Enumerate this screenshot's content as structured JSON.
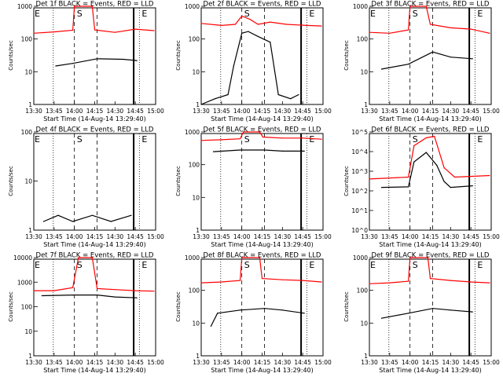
{
  "figure": {
    "xlabel": "Start Time (14-Aug-14 13:29:40)",
    "ylabel": "Counts/sec",
    "title_suffix": "BLACK = Events, RED = LLD",
    "series_names": [
      "Events",
      "LLD"
    ],
    "colors": {
      "events": "#000000",
      "lld": "#ff0000",
      "axes": "#000000",
      "background": "#ffffff"
    }
  },
  "chart_data": [
    {
      "type": "line",
      "title": "Det 1f BLACK = Events, RED = LLD",
      "xlabel": "Start Time (14-Aug-14 13:29:40)",
      "ylabel": "Counts/sec",
      "x_ticks": [
        "13:30",
        "13:45",
        "14:00",
        "14:15",
        "14:30",
        "14:45",
        "15:00"
      ],
      "y_scale": "log",
      "ylim": [
        1,
        1000
      ],
      "y_ticks": [
        "1",
        "10",
        "100",
        "1000"
      ],
      "markers": [
        "E",
        "S",
        "E"
      ],
      "series": [
        {
          "name": "Events",
          "points": [
            [
              13.77,
              15
            ],
            [
              13.98,
              18
            ],
            [
              14.28,
              25
            ],
            [
              14.6,
              24
            ],
            [
              14.77,
              22
            ]
          ]
        },
        {
          "name": "LLD",
          "points": [
            [
              13.5,
              150
            ],
            [
              13.75,
              165
            ],
            [
              13.98,
              185
            ],
            [
              14.0,
              1000
            ],
            [
              14.22,
              1000
            ],
            [
              14.25,
              190
            ],
            [
              14.5,
              160
            ],
            [
              14.75,
              200
            ],
            [
              14.98,
              180
            ]
          ]
        }
      ]
    },
    {
      "type": "line",
      "title": "Det 2f BLACK = Events, RED = LLD",
      "xlabel": "Start Time (14-Aug-14 13:29:40)",
      "ylabel": "Counts/sec",
      "x_ticks": [
        "13:30",
        "13:45",
        "14:00",
        "14:15",
        "14:30",
        "14:45",
        "15:00"
      ],
      "y_scale": "log",
      "ylim": [
        1,
        1000
      ],
      "y_ticks": [
        "1",
        "10",
        "100",
        "1000"
      ],
      "markers": [
        "S",
        "E"
      ],
      "series": [
        {
          "name": "Events",
          "points": [
            [
              13.5,
              1
            ],
            [
              13.67,
              1.5
            ],
            [
              13.83,
              2
            ],
            [
              13.9,
              15
            ],
            [
              14.0,
              150
            ],
            [
              14.08,
              170
            ],
            [
              14.2,
              120
            ],
            [
              14.35,
              80
            ],
            [
              14.45,
              2
            ],
            [
              14.6,
              1.5
            ],
            [
              14.7,
              2
            ]
          ]
        },
        {
          "name": "LLD",
          "points": [
            [
              13.5,
              300
            ],
            [
              13.75,
              260
            ],
            [
              13.92,
              280
            ],
            [
              14.0,
              500
            ],
            [
              14.1,
              400
            ],
            [
              14.2,
              280
            ],
            [
              14.35,
              330
            ],
            [
              14.55,
              280
            ],
            [
              14.8,
              260
            ],
            [
              14.98,
              250
            ]
          ]
        }
      ]
    },
    {
      "type": "line",
      "title": "Det 3f BLACK = Events, RED = LLD",
      "xlabel": "Start Time (14-Aug-14 13:29:40)",
      "ylabel": "Counts/sec",
      "x_ticks": [
        "13:30",
        "13:45",
        "14:00",
        "14:15",
        "14:30",
        "14:45",
        "15:00"
      ],
      "y_scale": "log",
      "ylim": [
        1,
        1000
      ],
      "y_ticks": [
        "1",
        "10",
        "100",
        "1000"
      ],
      "markers": [
        "E",
        "S",
        "E"
      ],
      "series": [
        {
          "name": "Events",
          "points": [
            [
              13.65,
              12
            ],
            [
              13.98,
              17
            ],
            [
              14.28,
              40
            ],
            [
              14.5,
              28
            ],
            [
              14.77,
              25
            ]
          ]
        },
        {
          "name": "LLD",
          "points": [
            [
              13.5,
              160
            ],
            [
              13.75,
              150
            ],
            [
              13.98,
              190
            ],
            [
              14.0,
              1000
            ],
            [
              14.2,
              1000
            ],
            [
              14.25,
              280
            ],
            [
              14.5,
              220
            ],
            [
              14.75,
              200
            ],
            [
              14.98,
              150
            ]
          ]
        }
      ]
    },
    {
      "type": "line",
      "title": "Det 4f BLACK = Events, RED = LLD",
      "xlabel": "Start Time (14-Aug-14 13:29:40)",
      "ylabel": "Counts/sec",
      "x_ticks": [
        "13:30",
        "13:45",
        "14:00",
        "14:15",
        "14:30",
        "14:45",
        "15:00"
      ],
      "y_scale": "log",
      "ylim": [
        1,
        100
      ],
      "y_ticks": [
        "1",
        "10",
        "100"
      ],
      "markers": [
        "E",
        "S",
        "E"
      ],
      "series": [
        {
          "name": "Events",
          "points": [
            [
              13.62,
              1.5
            ],
            [
              13.8,
              2
            ],
            [
              13.98,
              1.5
            ],
            [
              14.22,
              2
            ],
            [
              14.45,
              1.5
            ],
            [
              14.7,
              2
            ]
          ]
        },
        {
          "name": "LLD",
          "points": []
        }
      ]
    },
    {
      "type": "line",
      "title": "Det 5f BLACK = Events, RED = LLD",
      "xlabel": "Start Time (14-Aug-14 13:29:40)",
      "ylabel": "Counts/sec",
      "x_ticks": [
        "13:30",
        "13:45",
        "14:00",
        "14:15",
        "14:30",
        "14:45",
        "15:00"
      ],
      "y_scale": "log",
      "ylim": [
        1,
        1000
      ],
      "y_ticks": [
        "1",
        "10",
        "100",
        "1000"
      ],
      "markers": [
        "S",
        "E"
      ],
      "series": [
        {
          "name": "Events",
          "points": [
            [
              13.65,
              250
            ],
            [
              13.98,
              280
            ],
            [
              14.28,
              280
            ],
            [
              14.5,
              260
            ],
            [
              14.77,
              260
            ]
          ]
        },
        {
          "name": "LLD",
          "points": [
            [
              13.5,
              550
            ],
            [
              13.75,
              580
            ],
            [
              13.98,
              620
            ],
            [
              14.02,
              1000
            ],
            [
              14.22,
              1000
            ],
            [
              14.26,
              700
            ],
            [
              14.5,
              650
            ],
            [
              14.75,
              650
            ],
            [
              14.98,
              600
            ]
          ]
        }
      ]
    },
    {
      "type": "line",
      "title": "Det 6f BLACK = Events, RED = LLD",
      "xlabel": "Start Time (14-Aug-14 13:29:40)",
      "ylabel": "Counts/sec",
      "x_ticks": [
        "13:30",
        "13:45",
        "14:00",
        "14:15",
        "14:30",
        "14:45",
        "15:00"
      ],
      "y_scale": "log",
      "ylim": [
        1,
        100000
      ],
      "y_ticks": [
        "10^0",
        "10^1",
        "10^2",
        "10^3",
        "10^4",
        "10^5"
      ],
      "markers": [
        "S",
        "E"
      ],
      "series": [
        {
          "name": "Events",
          "points": [
            [
              13.65,
              150
            ],
            [
              13.98,
              160
            ],
            [
              14.05,
              3000
            ],
            [
              14.2,
              9000
            ],
            [
              14.33,
              2000
            ],
            [
              14.42,
              300
            ],
            [
              14.5,
              150
            ],
            [
              14.77,
              180
            ]
          ]
        },
        {
          "name": "LLD",
          "points": [
            [
              13.5,
              400
            ],
            [
              13.98,
              500
            ],
            [
              14.05,
              20000
            ],
            [
              14.2,
              50000
            ],
            [
              14.3,
              60000
            ],
            [
              14.42,
              1500
            ],
            [
              14.55,
              500
            ],
            [
              14.98,
              600
            ]
          ]
        }
      ]
    },
    {
      "type": "line",
      "title": "Det 7f BLACK = Events, RED = LLD",
      "xlabel": "Start Time (14-Aug-14 13:29:40)",
      "ylabel": "Counts/sec",
      "x_ticks": [
        "13:30",
        "13:45",
        "14:00",
        "14:15",
        "14:30",
        "14:45",
        "15:00"
      ],
      "y_scale": "log",
      "ylim": [
        1,
        10000
      ],
      "y_ticks": [
        "1",
        "10",
        "100",
        "1000",
        "10000"
      ],
      "markers": [
        "E",
        "S",
        "E"
      ],
      "series": [
        {
          "name": "Events",
          "points": [
            [
              13.6,
              280
            ],
            [
              13.98,
              300
            ],
            [
              14.28,
              300
            ],
            [
              14.5,
              250
            ],
            [
              14.77,
              230
            ]
          ]
        },
        {
          "name": "LLD",
          "points": [
            [
              13.5,
              450
            ],
            [
              13.75,
              450
            ],
            [
              13.98,
              600
            ],
            [
              14.05,
              10000
            ],
            [
              14.22,
              10000
            ],
            [
              14.28,
              550
            ],
            [
              14.5,
              500
            ],
            [
              14.75,
              450
            ],
            [
              14.98,
              430
            ]
          ]
        }
      ]
    },
    {
      "type": "line",
      "title": "Det 8f BLACK = Events, RED = LLD",
      "xlabel": "Start Time (14-Aug-14 13:29:40)",
      "ylabel": "Counts/sec",
      "x_ticks": [
        "13:30",
        "13:45",
        "14:00",
        "14:15",
        "14:30",
        "14:45",
        "15:00"
      ],
      "y_scale": "log",
      "ylim": [
        1,
        1000
      ],
      "y_ticks": [
        "1",
        "10",
        "100",
        "1000"
      ],
      "markers": [
        "S",
        "E"
      ],
      "series": [
        {
          "name": "Events",
          "points": [
            [
              13.62,
              8
            ],
            [
              13.7,
              20
            ],
            [
              13.98,
              25
            ],
            [
              14.28,
              28
            ],
            [
              14.5,
              25
            ],
            [
              14.77,
              20
            ]
          ]
        },
        {
          "name": "LLD",
          "points": [
            [
              13.5,
              170
            ],
            [
              13.75,
              180
            ],
            [
              13.98,
              200
            ],
            [
              14.0,
              1000
            ],
            [
              14.22,
              1000
            ],
            [
              14.25,
              230
            ],
            [
              14.5,
              210
            ],
            [
              14.75,
              200
            ],
            [
              14.98,
              180
            ]
          ]
        }
      ]
    },
    {
      "type": "line",
      "title": "Det 9f BLACK = Events, RED = LLD",
      "xlabel": "Start Time (14-Aug-14 13:29:40)",
      "ylabel": "Counts/sec",
      "x_ticks": [
        "13:30",
        "13:45",
        "14:00",
        "14:15",
        "14:30",
        "14:45",
        "15:00"
      ],
      "y_scale": "log",
      "ylim": [
        1,
        1000
      ],
      "y_ticks": [
        "1",
        "10",
        "100",
        "1000"
      ],
      "markers": [
        "E",
        "S",
        "E"
      ],
      "series": [
        {
          "name": "Events",
          "points": [
            [
              13.65,
              14
            ],
            [
              13.98,
              20
            ],
            [
              14.28,
              28
            ],
            [
              14.5,
              25
            ],
            [
              14.77,
              22
            ]
          ]
        },
        {
          "name": "LLD",
          "points": [
            [
              13.5,
              160
            ],
            [
              13.75,
              170
            ],
            [
              13.98,
              190
            ],
            [
              14.0,
              1000
            ],
            [
              14.22,
              1000
            ],
            [
              14.25,
              230
            ],
            [
              14.5,
              200
            ],
            [
              14.75,
              180
            ],
            [
              14.98,
              170
            ]
          ]
        }
      ]
    }
  ]
}
